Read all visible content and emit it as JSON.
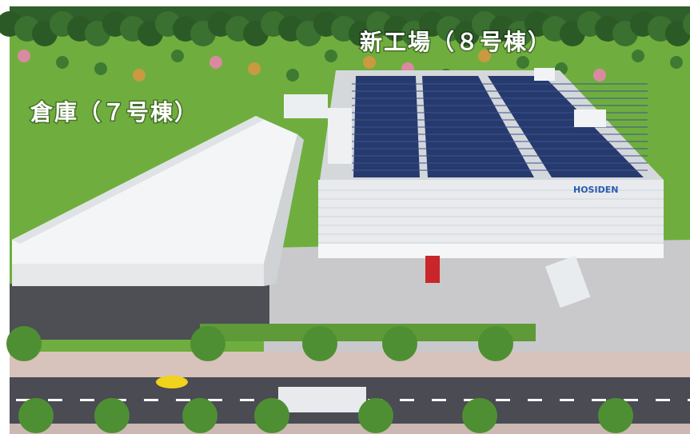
{
  "labels": {
    "new_factory": "新工場（８号棟）",
    "warehouse": "倉庫（７号棟）",
    "sign": "HOSIDEN"
  }
}
